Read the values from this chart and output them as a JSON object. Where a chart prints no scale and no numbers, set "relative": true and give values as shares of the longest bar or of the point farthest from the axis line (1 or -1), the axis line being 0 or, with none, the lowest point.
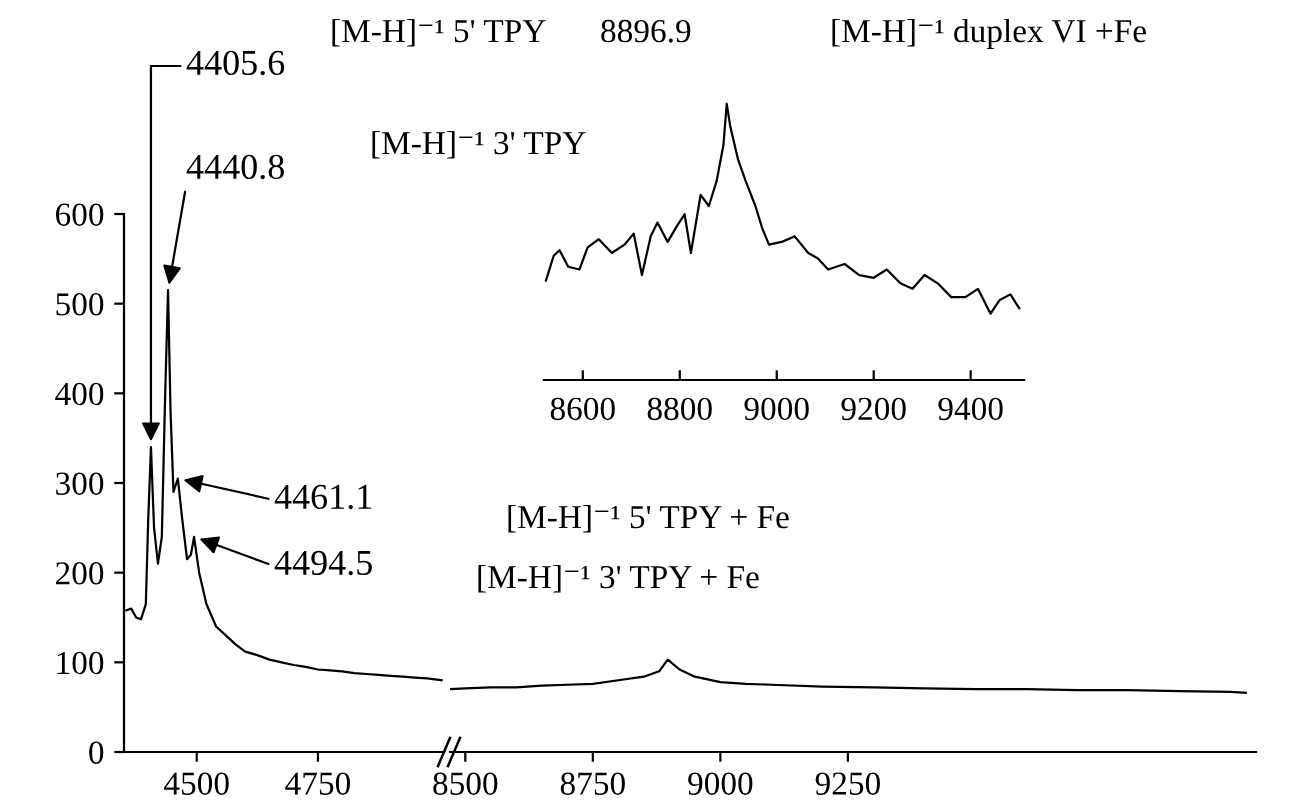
{
  "chart_data": [
    {
      "type": "line",
      "xlim": [
        4350,
        5010
      ],
      "xticks": [
        4500,
        4750
      ],
      "ylim": [
        0,
        600
      ],
      "yticks": [
        0,
        100,
        200,
        300,
        400,
        500,
        600
      ],
      "grid": false,
      "legend": false,
      "marker": "none",
      "line_style": "solid",
      "series": [
        {
          "color": "#000000",
          "x": [
            4355,
            4365,
            4375,
            4385,
            4395,
            4400,
            4405.6,
            4412,
            4420,
            4428,
            4435,
            4440.8,
            4446,
            4452,
            4461.1,
            4470,
            4480,
            4488,
            4494.5,
            4505,
            4520,
            4540,
            4560,
            4580,
            4600,
            4625,
            4650,
            4675,
            4700,
            4725,
            4750,
            4775,
            4800,
            4825,
            4850,
            4875,
            4900,
            4925,
            4950,
            4975,
            5005
          ],
          "values": [
            158,
            160,
            150,
            148,
            165,
            260,
            340,
            250,
            210,
            240,
            400,
            515,
            380,
            290,
            305,
            260,
            215,
            220,
            240,
            200,
            165,
            140,
            130,
            120,
            112,
            108,
            103,
            100,
            97,
            95,
            92,
            91,
            90,
            88,
            87,
            86,
            85,
            84,
            83,
            82,
            80
          ]
        }
      ],
      "annotations": [
        {
          "text": "4405.6",
          "x": 4405.6,
          "y": 340
        },
        {
          "text": "4440.8",
          "x": 4440.8,
          "y": 515
        },
        {
          "text": "4461.1",
          "x": 4461.1,
          "y": 305
        },
        {
          "text": "4494.5",
          "x": 4494.5,
          "y": 240
        },
        "[M-H]⁻¹ 5' TPY",
        "[M-H]⁻¹ 3' TPY",
        "[M-H]⁻¹ duplex VI +Fe",
        "[M-H]⁻¹ 5' TPY + Fe",
        "[M-H]⁻¹ 3' TPY + Fe"
      ]
    },
    {
      "type": "line",
      "xlim": [
        8470,
        10050
      ],
      "xticks": [
        8500,
        8750,
        9000,
        9250
      ],
      "ylim": [
        0,
        600
      ],
      "tick_labels": "x",
      "grid": false,
      "legend": false,
      "marker": "none",
      "line_style": "solid",
      "series": [
        {
          "color": "#000000",
          "x": [
            8470,
            8500,
            8550,
            8600,
            8650,
            8700,
            8750,
            8800,
            8850,
            8880,
            8896.9,
            8920,
            8950,
            9000,
            9050,
            9100,
            9200,
            9300,
            9400,
            9500,
            9600,
            9700,
            9800,
            9900,
            10000,
            10030
          ],
          "values": [
            70,
            71,
            72,
            72,
            74,
            75,
            76,
            80,
            84,
            90,
            103,
            92,
            84,
            78,
            76,
            75,
            73,
            72,
            71,
            70,
            70,
            69,
            69,
            68,
            67,
            66
          ]
        }
      ]
    },
    {
      "type": "line",
      "relative": true,
      "xlim": [
        8520,
        9510
      ],
      "xticks": [
        8600,
        8800,
        9000,
        9200,
        9400
      ],
      "tick_labels": "x",
      "grid": false,
      "legend": false,
      "marker": "none",
      "line_style": "solid",
      "series": [
        {
          "color": "#000000",
          "x": [
            8524,
            8540,
            8552,
            8570,
            8593,
            8610,
            8633,
            8660,
            8686,
            8705,
            8722,
            8740,
            8754,
            8775,
            8795,
            8810,
            8823,
            8843,
            8860,
            8876,
            8890,
            8896.9,
            8904,
            8920,
            8936,
            8956,
            8970,
            8984,
            9010,
            9037,
            9065,
            9085,
            9106,
            9140,
            9170,
            9200,
            9227,
            9255,
            9280,
            9305,
            9332,
            9360,
            9389,
            9415,
            9441,
            9460,
            9482,
            9500
          ],
          "values": [
            0.36,
            0.45,
            0.47,
            0.41,
            0.4,
            0.48,
            0.51,
            0.46,
            0.49,
            0.53,
            0.38,
            0.52,
            0.57,
            0.5,
            0.56,
            0.6,
            0.46,
            0.67,
            0.63,
            0.72,
            0.85,
            1.0,
            0.92,
            0.8,
            0.72,
            0.63,
            0.55,
            0.49,
            0.5,
            0.52,
            0.46,
            0.44,
            0.4,
            0.42,
            0.38,
            0.37,
            0.4,
            0.35,
            0.33,
            0.38,
            0.35,
            0.3,
            0.3,
            0.33,
            0.24,
            0.29,
            0.31,
            0.26
          ]
        }
      ],
      "annotations": [
        "8896.9"
      ]
    }
  ]
}
